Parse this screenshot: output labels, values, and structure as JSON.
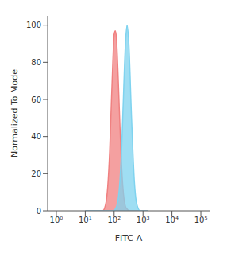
{
  "chart_data": {
    "type": "area",
    "x_label": "FITC-A",
    "y_label": "Normalized To Mode",
    "log": "x",
    "xlim": [
      0.5,
      200000
    ],
    "xticks": [
      {
        "value": 1,
        "label": "10⁰"
      },
      {
        "value": 10,
        "label": "10¹"
      },
      {
        "value": 100,
        "label": "10²"
      },
      {
        "value": 1000,
        "label": "10³"
      },
      {
        "value": 10000,
        "label": "10⁴"
      },
      {
        "value": 100000,
        "label": "10⁵"
      }
    ],
    "ylim": [
      0,
      105
    ],
    "yticks": [
      0,
      20,
      40,
      60,
      80,
      100
    ],
    "grid": false,
    "tick_labels": true,
    "x": [
      10,
      15,
      20,
      30,
      40,
      50,
      60,
      70,
      80,
      90,
      100,
      110,
      120,
      140,
      160,
      180,
      200,
      250,
      280,
      320,
      400,
      500,
      600,
      800,
      1000,
      1500
    ],
    "series": [
      {
        "color": "#f08080",
        "values": [
          0,
          0,
          0,
          0,
          0,
          3,
          13,
          32,
          58,
          80,
          95,
          97,
          93,
          69,
          44,
          25,
          13,
          2,
          1,
          0,
          0,
          0,
          0,
          0,
          0,
          0
        ]
      },
      {
        "color": "#7fd3ef",
        "values": [
          0,
          0,
          0,
          0,
          0,
          0,
          0,
          0,
          0,
          0,
          0,
          1,
          2,
          7,
          17,
          32,
          52,
          92,
          100,
          91,
          50,
          16,
          4,
          0,
          0,
          0
        ]
      }
    ]
  }
}
